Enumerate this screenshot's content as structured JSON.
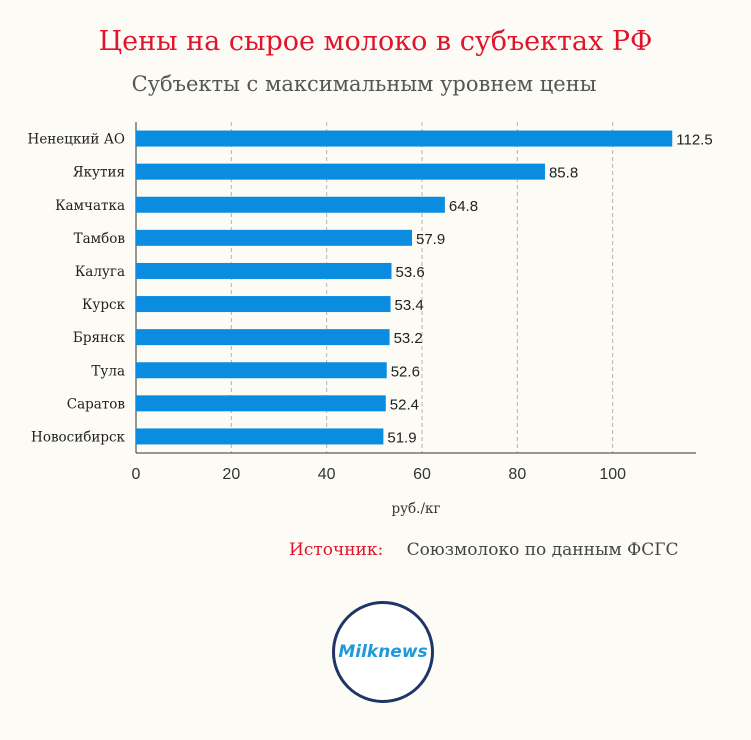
{
  "title": "Цены на сырое молоко в субъектах РФ",
  "subtitle": "Субъекты с максимальным уровнем цены",
  "chart_data": {
    "type": "bar",
    "orientation": "horizontal",
    "categories": [
      "Ненецкий АО",
      "Якутия",
      "Камчатка",
      "Тамбов",
      "Калуга",
      "Курск",
      "Брянск",
      "Тула",
      "Саратов",
      "Новосибирск"
    ],
    "values": [
      112.5,
      85.8,
      64.8,
      57.9,
      53.6,
      53.4,
      53.2,
      52.6,
      52.4,
      51.9
    ],
    "xlabel": "руб./кг",
    "xlim": [
      0,
      120
    ],
    "xticks": [
      0,
      20,
      40,
      60,
      80,
      100
    ],
    "grid": "vertical dashed",
    "bar_color": "#0a8de0",
    "data_labels": true
  },
  "source": {
    "label": "Источник:",
    "text": "Союзмолоко по данным ФСГС"
  },
  "logo": {
    "text": "Milknews",
    "ring_color": "#1e3566",
    "text_color": "#1f9ad6"
  }
}
